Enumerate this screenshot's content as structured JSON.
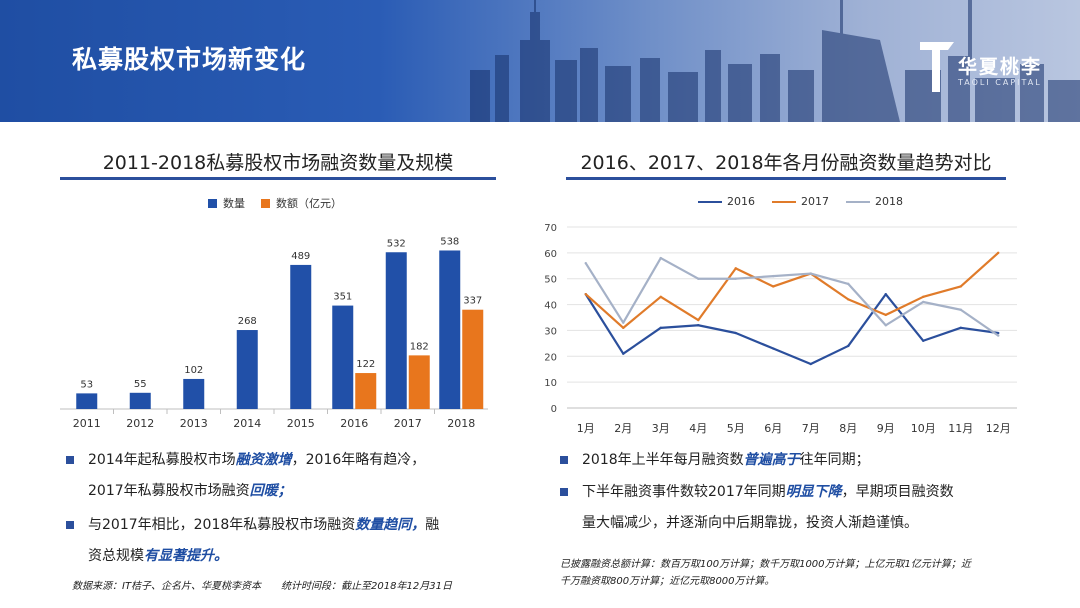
{
  "page": {
    "title": "私募股权市场新变化",
    "logo_text": "华夏桃李",
    "logo_sub": "TAOLI CAPITAL"
  },
  "colors": {
    "header_blue": "#1f4ea3",
    "bar_blue": "#2150a8",
    "bar_orange": "#e8761d",
    "line_2016": "#2b4f9c",
    "line_2017": "#e07b2a",
    "line_2018": "#a5b1c7",
    "highlight": "#1f4ea3"
  },
  "left": {
    "section_title": "2011-2018私募股权市场融资数量及规模",
    "bullets": [
      {
        "pre": "2014年起私募股权市场",
        "hl": "融资激增",
        "post": "，2016年略有趋冷，",
        "line2_pre": "2017年私募股权市场融资",
        "line2_hl": "回暖；"
      },
      {
        "pre": "与2017年相比，2018年私募股权市场融资",
        "hl": "数量趋同，",
        "post": "融",
        "line2_pre": "资总规模",
        "line2_hl": "有显著提升。"
      }
    ],
    "source_note": "数据来源：IT桔子、企名片、华夏桃李资本　　统计时间段：截止至2018年12月31日"
  },
  "right": {
    "section_title": "2016、2017、2018年各月份融资数量趋势对比",
    "bullets": [
      {
        "pre": "2018年上半年每月融资数",
        "hl": "普遍高于",
        "post": "往年同期；"
      },
      {
        "pre": "下半年融资事件数较2017年同期",
        "hl": "明显下降",
        "post": "，早期项目融资数",
        "line2": "量大幅减少，并逐渐向中后期靠拢，投资人渐趋谨慎。"
      }
    ],
    "note_line1": "已披露融资总额计算：数百万取100万计算；数千万取1000万计算；上亿元取1亿元计算；近",
    "note_line2": "千万融资取800万计算；近亿元取8000万计算。"
  },
  "chart_data": [
    {
      "type": "bar",
      "categories": [
        "2011",
        "2012",
        "2013",
        "2014",
        "2015",
        "2016",
        "2017",
        "2018"
      ],
      "series": [
        {
          "name": "数量",
          "values": [
            53,
            55,
            102,
            268,
            489,
            351,
            532,
            538
          ]
        },
        {
          "name": "数额（亿元）",
          "values": [
            null,
            null,
            null,
            null,
            null,
            122,
            182,
            337
          ]
        }
      ],
      "legend_position": "top-left",
      "grid": false
    },
    {
      "type": "line",
      "categories": [
        "1月",
        "2月",
        "3月",
        "4月",
        "5月",
        "6月",
        "7月",
        "8月",
        "9月",
        "10月",
        "11月",
        "12月"
      ],
      "series": [
        {
          "name": "2016",
          "values": [
            44,
            21,
            31,
            32,
            29,
            23,
            17,
            24,
            44,
            26,
            31,
            29
          ]
        },
        {
          "name": "2017",
          "values": [
            44,
            31,
            43,
            34,
            54,
            47,
            52,
            42,
            36,
            43,
            47,
            60
          ]
        },
        {
          "name": "2018",
          "values": [
            56,
            33,
            58,
            50,
            50,
            51,
            52,
            48,
            32,
            41,
            38,
            28
          ]
        }
      ],
      "ylim": [
        0,
        70
      ],
      "yticks": [
        0,
        10,
        20,
        30,
        40,
        50,
        60,
        70
      ],
      "legend_position": "top",
      "grid": true
    }
  ]
}
